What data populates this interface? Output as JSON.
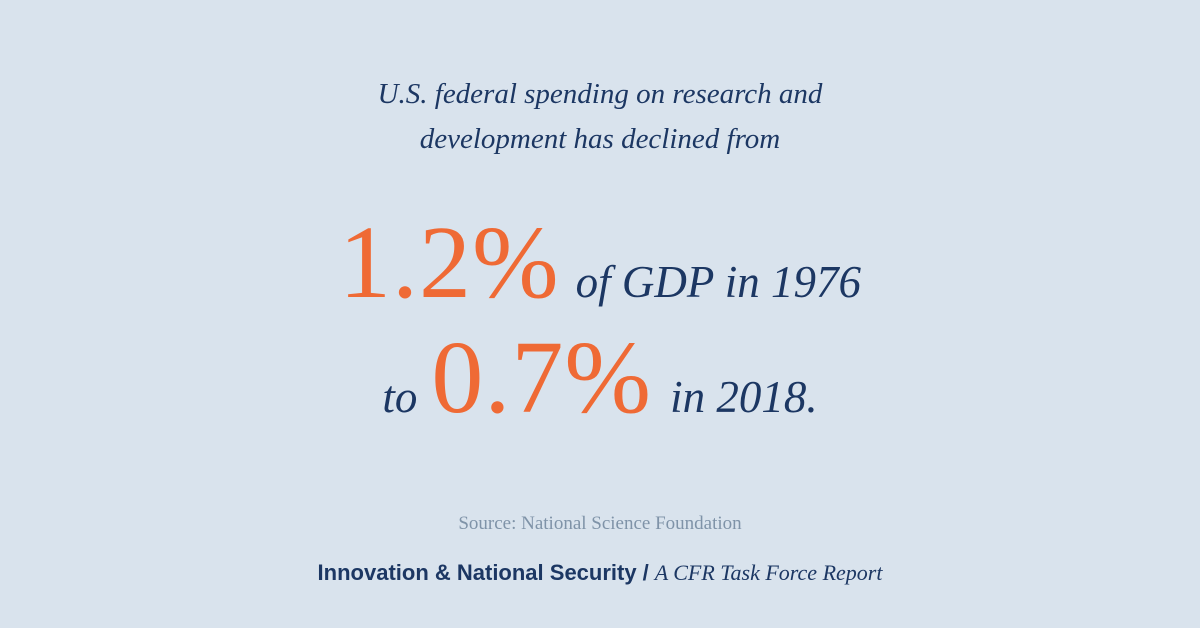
{
  "intro": {
    "line1": "U.S. federal spending on research and",
    "line2": "development has declined from"
  },
  "stat1": {
    "value": "1.2%",
    "text": "of GDP in 1976"
  },
  "stat2": {
    "prefix": "to",
    "value": "0.7%",
    "text": "in 2018."
  },
  "source": "Source: National Science Foundation",
  "footer": {
    "brand": "Innovation & National Security",
    "separator": "/",
    "report": "A CFR Task Force Report"
  },
  "colors": {
    "background": "#d9e3ed",
    "navy": "#1c3763",
    "accent": "#ef6a35",
    "muted": "#7f93a8"
  }
}
